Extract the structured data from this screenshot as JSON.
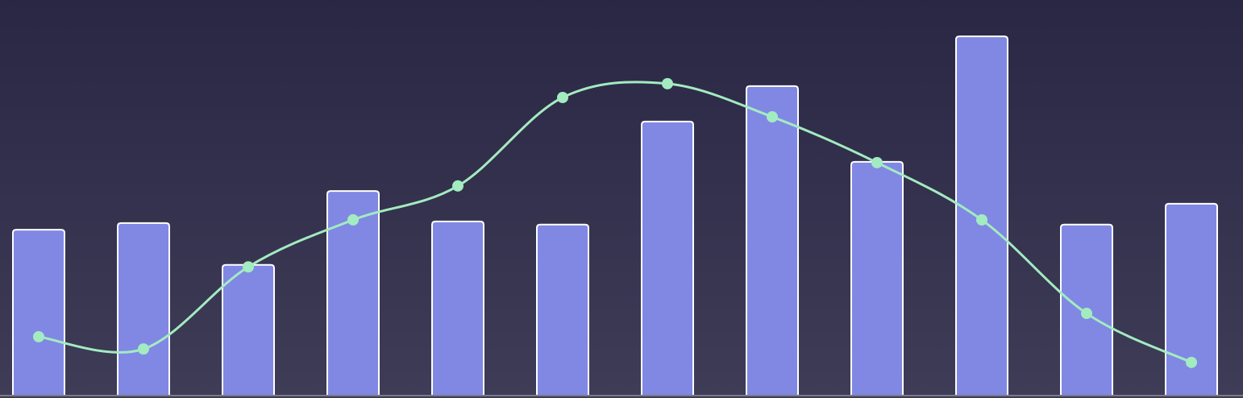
{
  "chart_data": {
    "type": "bar",
    "categories": [
      null,
      null,
      null,
      null,
      null,
      null,
      null,
      null,
      null,
      null,
      null,
      null
    ],
    "ylim": [
      0,
      100
    ],
    "series": [
      {
        "type": "bar",
        "color": "#8088e4",
        "values": [
          41.8,
          43.5,
          32.9,
          51.6,
          43.9,
          43.1,
          69.2,
          78.2,
          59.0,
          90.8,
          43.1,
          48.4
        ]
      },
      {
        "type": "line",
        "color": "#a3ebc0",
        "values": [
          14.7,
          11.6,
          32.4,
          44.3,
          52.9,
          75.3,
          78.8,
          70.4,
          58.8,
          44.3,
          20.6,
          8.2
        ]
      }
    ]
  }
}
